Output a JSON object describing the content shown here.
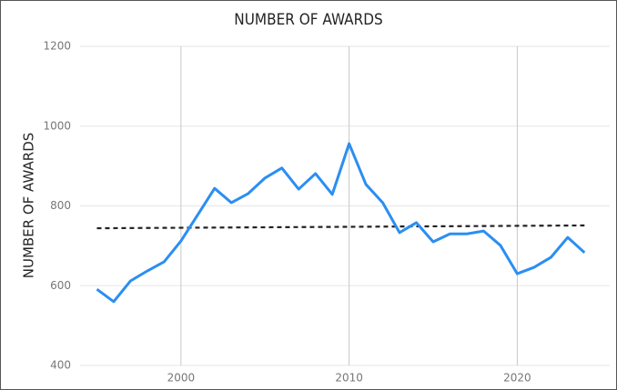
{
  "chart_data": {
    "type": "line",
    "title": "NUMBER OF AWARDS",
    "y_label": "NUMBER OF AWARDS",
    "x": [
      1995,
      1996,
      1997,
      1998,
      1999,
      2000,
      2001,
      2002,
      2003,
      2004,
      2005,
      2006,
      2007,
      2008,
      2009,
      2010,
      2011,
      2012,
      2013,
      2014,
      2015,
      2016,
      2017,
      2018,
      2019,
      2020,
      2021,
      2022,
      2023,
      2024
    ],
    "series": [
      {
        "color": "#2b8ef2",
        "values": [
          591,
          560,
          612,
          637,
          660,
          712,
          778,
          844,
          808,
          831,
          870,
          895,
          842,
          881,
          829,
          956,
          854,
          808,
          733,
          758,
          710,
          730,
          730,
          737,
          701,
          630,
          646,
          671,
          721,
          683
        ]
      }
    ],
    "trend": {
      "x": [
        1995,
        2024
      ],
      "values": [
        744,
        751
      ],
      "color": "#222222",
      "dashed": true
    },
    "xlim": [
      1994,
      2025.5
    ],
    "xticks": [
      2000,
      2010,
      2020
    ],
    "ylim": [
      400,
      1200
    ],
    "yticks": [
      400,
      600,
      800,
      1000,
      1200
    ],
    "grid": true
  }
}
